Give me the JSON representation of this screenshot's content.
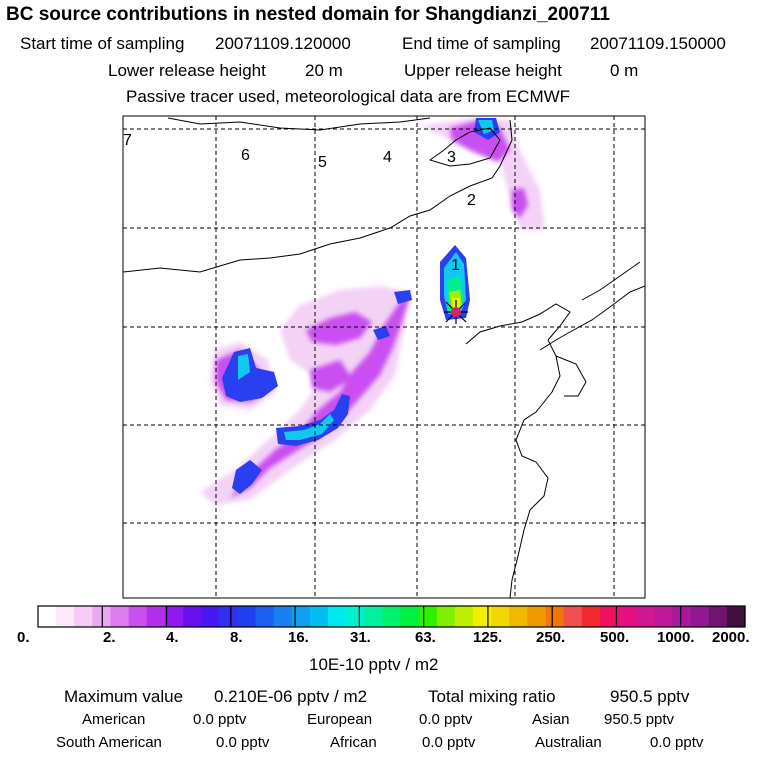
{
  "title": "BC  source contributions in nested domain for Shangdianzi_200711",
  "start_label": "Start time of sampling",
  "start_value": "20071109.120000",
  "end_label": "End time of sampling",
  "end_value": "20071109.150000",
  "lower_label": "Lower release height",
  "lower_value": "20 m",
  "upper_label": "Upper release height",
  "upper_value": "0 m",
  "tracer_note": "Passive tracer used, meteorological data are from ECMWF",
  "day_markers": [
    "7",
    "6",
    "5",
    "4",
    "3",
    "2",
    "1"
  ],
  "colorbar": {
    "labels": [
      "0.",
      "2.",
      "4.",
      "8.",
      "16.",
      "31.",
      "63.",
      "125.",
      "250.",
      "500.",
      "1000.",
      "2000."
    ],
    "unit": "10E-10 pptv / m2",
    "colors": [
      "#ffffff",
      "#fbe8fb",
      "#f4ccf6",
      "#eaa8f0",
      "#dd7ff0",
      "#c94ff0",
      "#b42ef0",
      "#9018f0",
      "#6a10f0",
      "#4818f0",
      "#3030f0",
      "#2040f0",
      "#1c60f0",
      "#1880f0",
      "#10a0f0",
      "#00c0f0",
      "#00e8f0",
      "#00f0d0",
      "#00f0a0",
      "#00f070",
      "#00f040",
      "#30f000",
      "#80f000",
      "#c0f000",
      "#f0f000",
      "#f0d800",
      "#f0b800",
      "#f09800",
      "#f07800",
      "#f05050",
      "#f02a2a",
      "#f01060",
      "#e81080",
      "#d01890",
      "#c01898",
      "#a818a0",
      "#901890",
      "#701470",
      "#401040"
    ]
  },
  "max_label": "Maximum value",
  "max_value": "0.210E-06 pptv / m2",
  "total_label": "Total mixing ratio",
  "total_value": "950.5 pptv",
  "regions": {
    "american_label": "American",
    "american_value": "0.0 pptv",
    "european_label": "European",
    "european_value": "0.0 pptv",
    "asian_label": "Asian",
    "asian_value": "950.5 pptv",
    "south_american_label": "South American",
    "south_american_value": "0.0 pptv",
    "african_label": "African",
    "african_value": "0.0 pptv",
    "australian_label": "Australian",
    "australian_value": "0.0 pptv"
  }
}
